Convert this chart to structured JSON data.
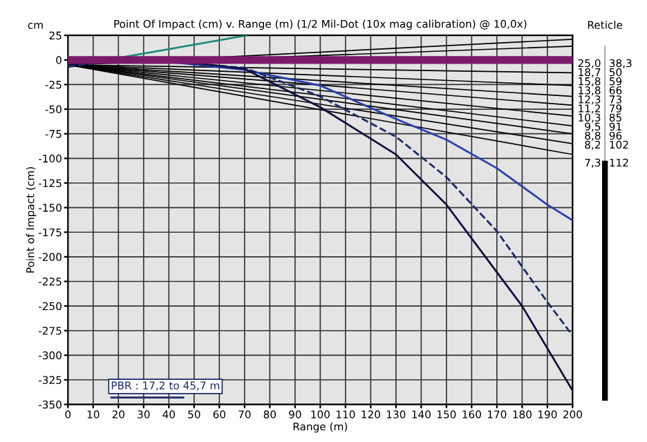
{
  "chart_data": {
    "type": "line",
    "title": "Point Of Impact (cm) v. Range (m) (1/2 Mil-Dot (10x mag calibration) @ 10,0x)",
    "xlabel": "Range (m)",
    "ylabel": "Point of Impact (cm)",
    "xlim": [
      0,
      200
    ],
    "ylim": [
      -350,
      25
    ],
    "xticks": [
      0,
      10,
      20,
      30,
      40,
      50,
      60,
      70,
      80,
      90,
      100,
      110,
      120,
      130,
      140,
      150,
      160,
      170,
      180,
      190,
      200
    ],
    "yticks": [
      25,
      0,
      -25,
      -50,
      -75,
      -100,
      -125,
      -150,
      -175,
      -200,
      -225,
      -250,
      -275,
      -300,
      -325,
      -350
    ],
    "grid": true,
    "marker": "none",
    "series": [
      {
        "color": "#000000",
        "x": [
          0,
          200
        ],
        "values": [
          -5,
          21
        ]
      },
      {
        "color": "#000000",
        "x": [
          0,
          200
        ],
        "values": [
          -5,
          14
        ]
      },
      {
        "color": "#000000",
        "x": [
          0,
          200
        ],
        "values": [
          -5,
          -13
        ]
      },
      {
        "color": "#000000",
        "x": [
          0,
          200
        ],
        "values": [
          -5,
          -26
        ]
      },
      {
        "color": "#000000",
        "x": [
          0,
          200
        ],
        "values": [
          -5,
          -37
        ]
      },
      {
        "color": "#000000",
        "x": [
          0,
          200
        ],
        "values": [
          -5,
          -46
        ]
      },
      {
        "color": "#000000",
        "x": [
          0,
          200
        ],
        "values": [
          -5,
          -57
        ]
      },
      {
        "color": "#000000",
        "x": [
          0,
          200
        ],
        "values": [
          -5,
          -67
        ]
      },
      {
        "color": "#000000",
        "x": [
          0,
          200
        ],
        "values": [
          -5,
          -75
        ]
      },
      {
        "color": "#000000",
        "x": [
          0,
          200
        ],
        "values": [
          -5,
          -85
        ]
      },
      {
        "color": "#000000",
        "x": [
          0,
          200
        ],
        "values": [
          -5,
          -96
        ]
      },
      {
        "color": "#1f8a7a",
        "x": [
          0,
          20,
          71
        ],
        "values": [
          -5,
          2,
          25
        ]
      },
      {
        "color": "#2a3fb0",
        "x": [
          0,
          20,
          40,
          70,
          100,
          130,
          150,
          170,
          190,
          200
        ],
        "values": [
          -5,
          0,
          -2,
          -10,
          -26,
          -60,
          -81,
          -110,
          -147,
          -163
        ]
      },
      {
        "color": "#1a2a6a",
        "line_style": "dashed",
        "x": [
          0,
          20,
          40,
          70,
          100,
          130,
          150,
          170,
          190,
          200
        ],
        "values": [
          -7,
          0,
          -2,
          -8,
          -37,
          -78,
          -119,
          -174,
          -246,
          -280
        ]
      },
      {
        "color": "#101040",
        "x": [
          0,
          20,
          50,
          70,
          100,
          130,
          150,
          180,
          200
        ],
        "values": [
          -5,
          0,
          -3,
          -9,
          -48,
          -96,
          -147,
          -250,
          -336
        ]
      },
      {
        "color": "#1a2a6a",
        "x": [
          17.2,
          45.7
        ],
        "values": [
          -343,
          -343
        ]
      }
    ],
    "ref_lines": [
      {
        "axis": "y",
        "value": 0,
        "color": "#7a1a6a"
      }
    ],
    "annotations": [
      "cm",
      "Reticle",
      "25,0",
      "38,3",
      "18,7",
      "50",
      "15,8",
      "59",
      "13,8",
      "66",
      "12,3",
      "73",
      "11,2",
      "79",
      "10,3",
      "85",
      "9,5",
      "91",
      "8,8",
      "96",
      "8,2",
      "102",
      "7,3",
      "112",
      "PBR : 17,2 to 45,7 m"
    ]
  }
}
